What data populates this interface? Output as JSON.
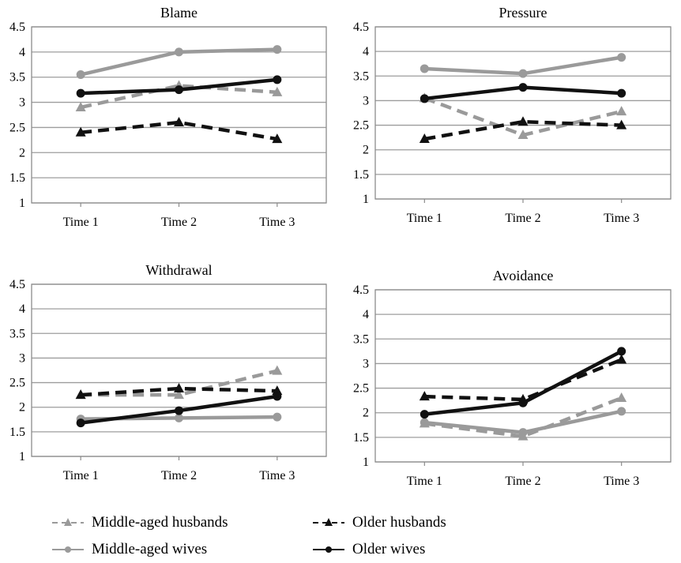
{
  "chart_data": [
    {
      "type": "line",
      "title": "Blame",
      "categories": [
        "Time 1",
        "Time 2",
        "Time 3"
      ],
      "ylim": [
        1,
        4.5
      ],
      "yticks": [
        "1",
        "1.5",
        "2",
        "2.5",
        "3",
        "3.5",
        "4",
        "4.5"
      ],
      "grid": true,
      "series": [
        {
          "name": "Middle-aged husbands",
          "values": [
            2.9,
            3.33,
            3.2
          ]
        },
        {
          "name": "Older husbands",
          "values": [
            2.4,
            2.6,
            2.27
          ]
        },
        {
          "name": "Middle-aged wives",
          "values": [
            3.55,
            4.0,
            4.05
          ]
        },
        {
          "name": "Older wives",
          "values": [
            3.18,
            3.25,
            3.45
          ]
        }
      ]
    },
    {
      "type": "line",
      "title": "Pressure",
      "categories": [
        "Time 1",
        "Time 2",
        "Time 3"
      ],
      "ylim": [
        1,
        4.5
      ],
      "yticks": [
        "1",
        "1.5",
        "2",
        "2.5",
        "3",
        "3.5",
        "4",
        "4.5"
      ],
      "grid": true,
      "series": [
        {
          "name": "Middle-aged husbands",
          "values": [
            3.05,
            2.3,
            2.78
          ]
        },
        {
          "name": "Older husbands",
          "values": [
            2.22,
            2.57,
            2.5
          ]
        },
        {
          "name": "Middle-aged wives",
          "values": [
            3.65,
            3.55,
            3.88
          ]
        },
        {
          "name": "Older wives",
          "values": [
            3.04,
            3.27,
            3.15
          ]
        }
      ]
    },
    {
      "type": "line",
      "title": "Withdrawal",
      "categories": [
        "Time 1",
        "Time 2",
        "Time 3"
      ],
      "ylim": [
        1,
        4.5
      ],
      "yticks": [
        "1",
        "1.5",
        "2",
        "2.5",
        "3",
        "3.5",
        "4",
        "4.5"
      ],
      "grid": true,
      "series": [
        {
          "name": "Middle-aged husbands",
          "values": [
            2.25,
            2.25,
            2.74
          ]
        },
        {
          "name": "Older husbands",
          "values": [
            2.25,
            2.38,
            2.33
          ]
        },
        {
          "name": "Middle-aged wives",
          "values": [
            1.76,
            1.78,
            1.8
          ]
        },
        {
          "name": "Older wives",
          "values": [
            1.68,
            1.93,
            2.22
          ]
        }
      ]
    },
    {
      "type": "line",
      "title": "Avoidance",
      "categories": [
        "Time 1",
        "Time 2",
        "Time 3"
      ],
      "ylim": [
        1,
        4.5
      ],
      "yticks": [
        "1",
        "1.5",
        "2",
        "2.5",
        "3",
        "3.5",
        "4",
        "4.5"
      ],
      "grid": true,
      "series": [
        {
          "name": "Middle-aged husbands",
          "values": [
            1.78,
            1.52,
            2.3
          ]
        },
        {
          "name": "Older husbands",
          "values": [
            2.33,
            2.27,
            3.08
          ]
        },
        {
          "name": "Middle-aged wives",
          "values": [
            1.8,
            1.6,
            2.03
          ]
        },
        {
          "name": "Older wives",
          "values": [
            1.97,
            2.2,
            3.25
          ]
        }
      ]
    }
  ],
  "series_styles": [
    {
      "name": "Middle-aged husbands",
      "color": "#9a9a9a",
      "dashed": true,
      "marker": "triangle"
    },
    {
      "name": "Older husbands",
      "color": "#111111",
      "dashed": true,
      "marker": "triangle"
    },
    {
      "name": "Middle-aged wives",
      "color": "#9a9a9a",
      "dashed": false,
      "marker": "circle"
    },
    {
      "name": "Older wives",
      "color": "#111111",
      "dashed": false,
      "marker": "circle"
    }
  ],
  "legend": {
    "items": [
      "Middle-aged husbands",
      "Older husbands",
      "Middle-aged wives",
      "Older wives"
    ]
  }
}
